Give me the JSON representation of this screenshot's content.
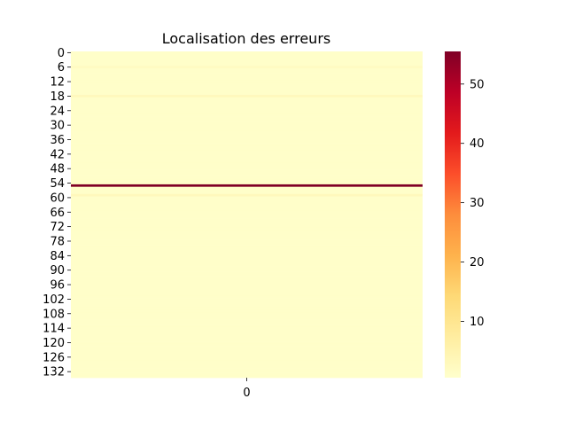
{
  "chart_data": {
    "type": "heatmap",
    "title": "Localisation des erreurs",
    "xlabel": "",
    "ylabel": "",
    "x_categories": [
      "0"
    ],
    "y_tick_labels": [
      "0",
      "6",
      "12",
      "18",
      "24",
      "30",
      "36",
      "42",
      "48",
      "54",
      "60",
      "66",
      "72",
      "78",
      "84",
      "90",
      "96",
      "102",
      "108",
      "114",
      "120",
      "126",
      "132"
    ],
    "row_count": 135,
    "values": [
      1,
      1,
      1,
      1,
      1,
      1,
      2,
      1,
      1,
      1,
      1,
      1,
      1,
      1,
      1,
      1,
      1,
      1,
      3,
      1,
      1,
      1,
      1,
      1,
      1,
      1,
      1,
      1,
      1,
      1,
      1,
      1,
      1,
      1,
      1,
      1,
      1,
      1,
      1,
      1,
      1,
      1,
      1,
      1,
      1,
      1,
      1,
      1,
      1,
      1,
      1,
      1,
      1,
      1,
      1,
      55.5,
      1,
      1,
      1,
      3,
      1,
      1,
      1,
      1,
      1,
      1,
      1,
      1,
      1,
      1,
      1,
      1,
      1,
      1,
      1,
      1,
      1,
      1,
      1,
      1,
      1,
      1,
      1,
      1,
      1,
      1,
      1,
      1,
      1,
      1,
      1,
      1,
      1,
      1,
      1,
      1,
      1,
      1,
      1,
      1,
      1,
      1,
      1,
      1,
      1,
      1,
      1,
      1,
      1,
      1,
      1,
      1,
      1,
      1,
      1,
      1,
      1,
      1,
      1,
      1,
      1,
      1,
      1,
      1,
      1,
      1,
      1,
      1,
      1,
      1,
      1,
      1,
      1,
      1,
      1
    ],
    "colorbar": {
      "min": 0.5,
      "max": 55.5,
      "ticks": [
        10,
        20,
        30,
        40,
        50
      ],
      "colormap": "YlOrRd",
      "stops": [
        "#ffffcc",
        "#ffeda0",
        "#fed976",
        "#feb24c",
        "#fd8d3c",
        "#fc4e2a",
        "#e31a1c",
        "#bd0026",
        "#800026"
      ]
    },
    "grid": false,
    "legend": "colorbar-right"
  }
}
